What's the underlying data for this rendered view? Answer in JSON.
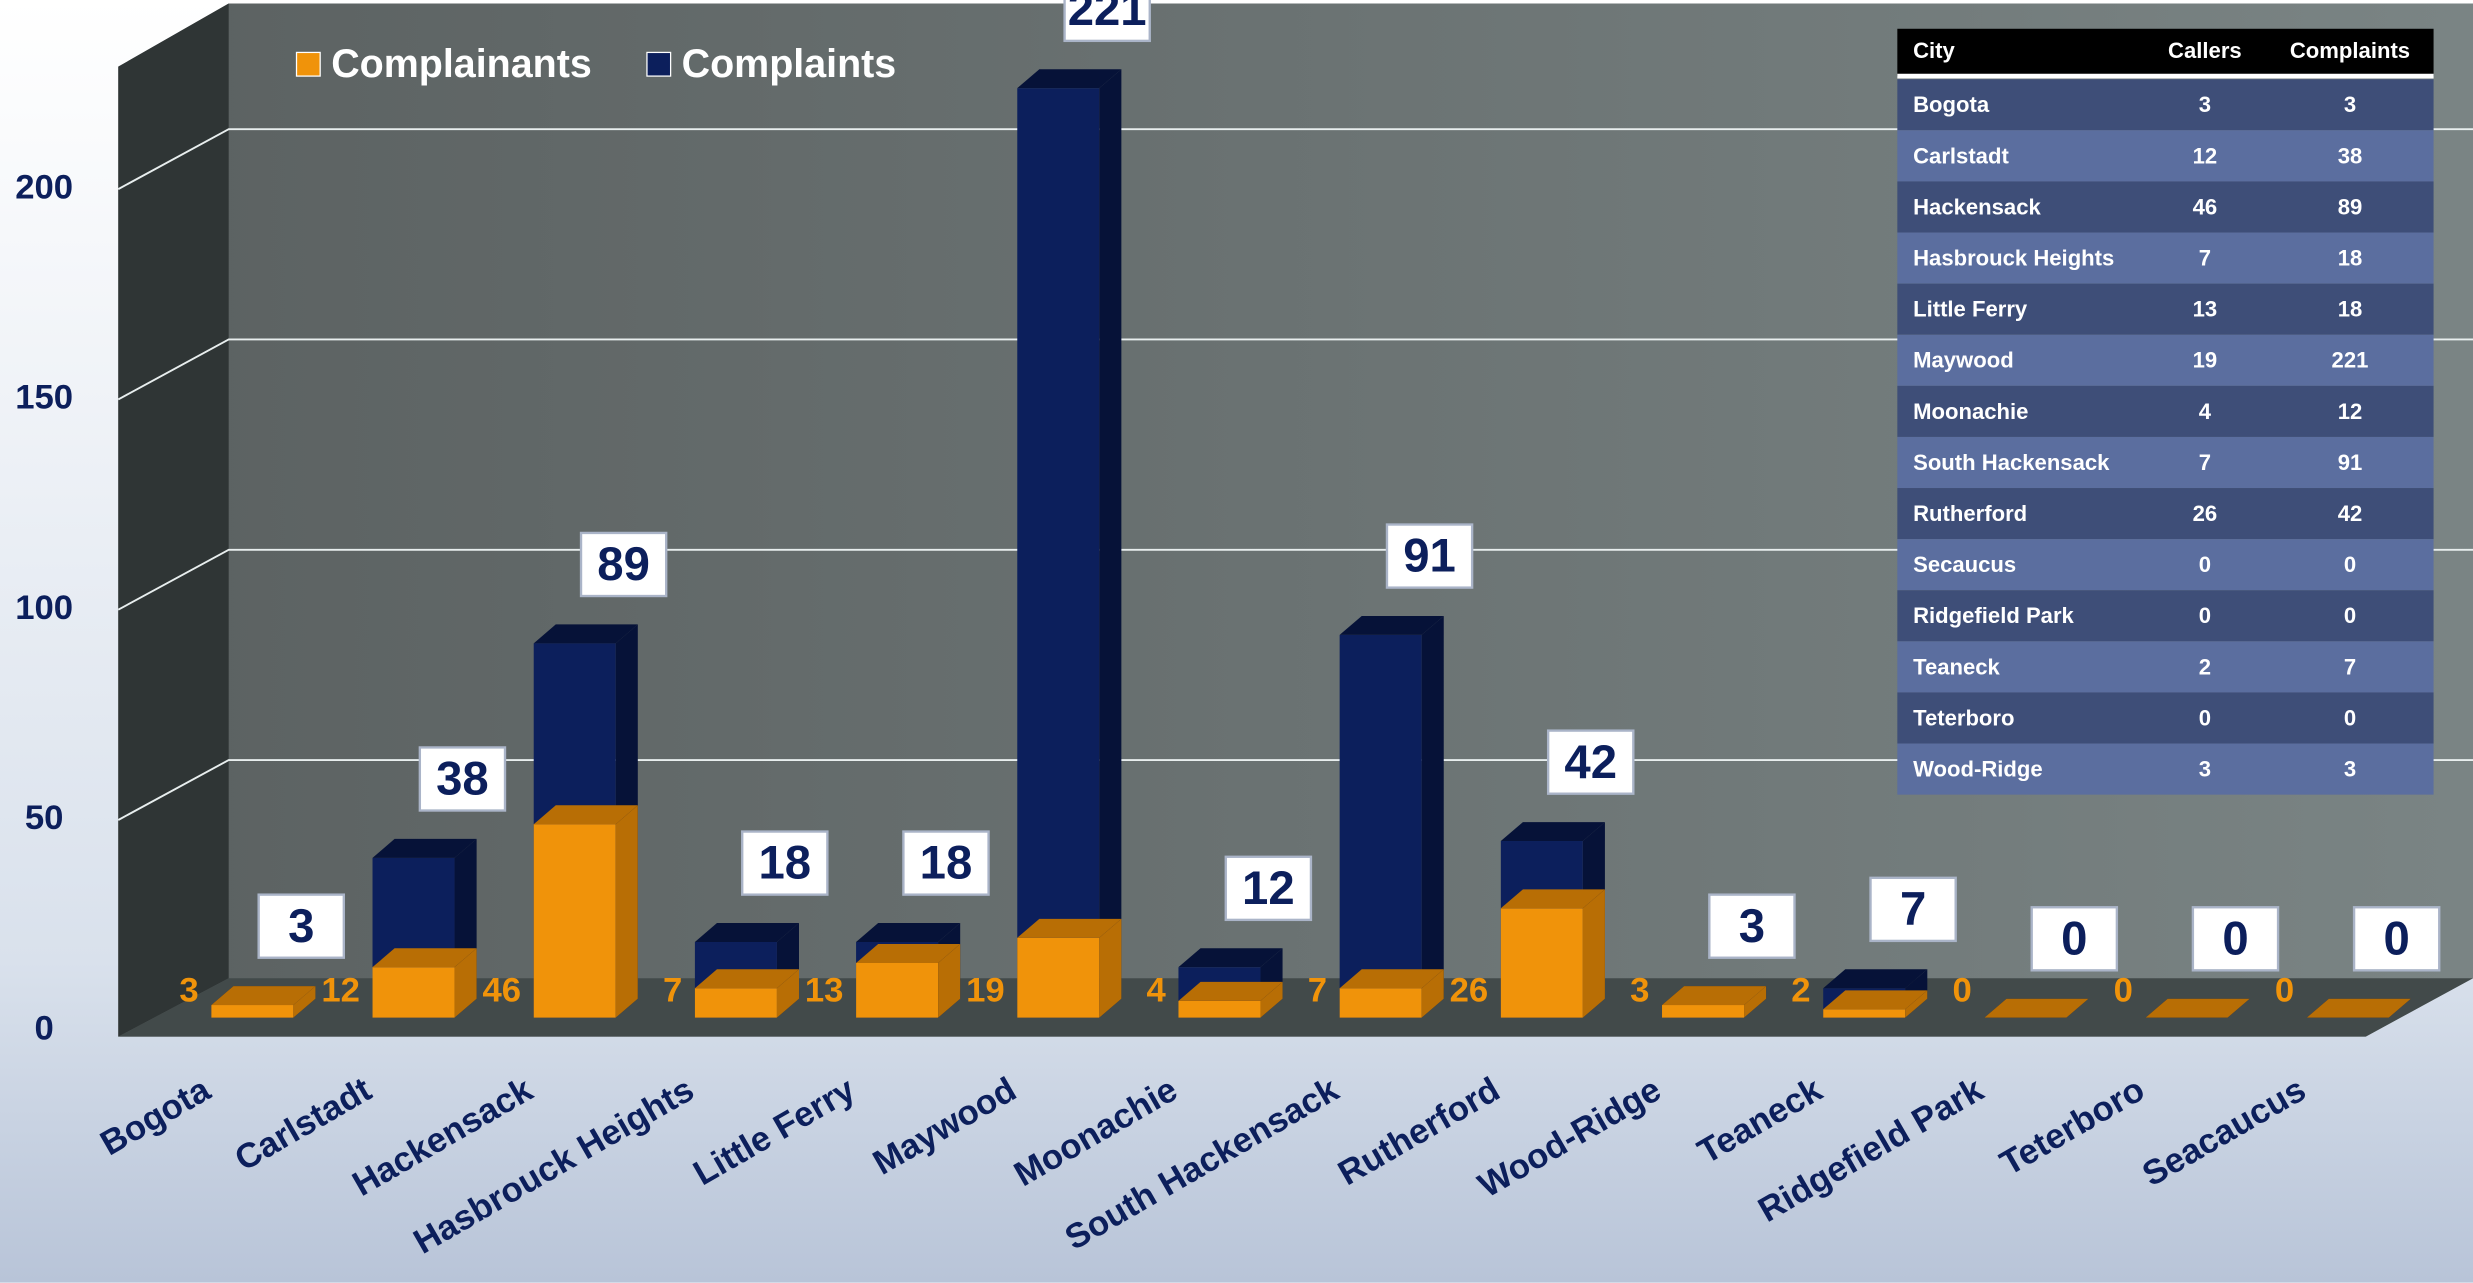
{
  "chart_data": {
    "type": "bar",
    "categories": [
      "Bogota",
      "Carlstadt",
      "Hackensack",
      "Hasbrouck Heights",
      "Little Ferry",
      "Maywood",
      "Moonachie",
      "South Hackensack",
      "Rutherford",
      "Wood-Ridge",
      "Teaneck",
      "Ridgefield Park",
      "Teterboro",
      "Seacaucus"
    ],
    "series": [
      {
        "name": "Complainants",
        "color": "#f0930a",
        "values": [
          3,
          12,
          46,
          7,
          13,
          19,
          4,
          7,
          26,
          3,
          2,
          0,
          0,
          0
        ]
      },
      {
        "name": "Complaints",
        "color": "#0c1f5c",
        "values": [
          3,
          38,
          89,
          18,
          18,
          221,
          12,
          91,
          42,
          3,
          7,
          0,
          0,
          0
        ]
      }
    ],
    "ylim": [
      0,
      240
    ],
    "yticks": [
      0,
      50,
      100,
      150,
      200
    ],
    "grid": true,
    "legend": "top-left"
  },
  "table": {
    "header": [
      "City",
      "Callers",
      "Complaints"
    ],
    "rows": [
      [
        "Bogota",
        3,
        3
      ],
      [
        "Carlstadt",
        12,
        38
      ],
      [
        "Hackensack",
        46,
        89
      ],
      [
        "Hasbrouck Heights",
        7,
        18
      ],
      [
        "Little Ferry",
        13,
        18
      ],
      [
        "Maywood",
        19,
        221
      ],
      [
        "Moonachie",
        4,
        12
      ],
      [
        "South Hackensack",
        7,
        91
      ],
      [
        "Rutherford",
        26,
        42
      ],
      [
        "Secaucus",
        0,
        0
      ],
      [
        "Ridgefield Park",
        0,
        0
      ],
      [
        "Teaneck",
        2,
        7
      ],
      [
        "Teterboro",
        0,
        0
      ],
      [
        "Wood-Ridge",
        3,
        3
      ]
    ]
  }
}
